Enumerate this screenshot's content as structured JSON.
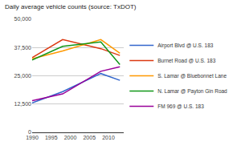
{
  "chart_data": {
    "type": "line",
    "title": "Daily average vehicle counts (source: TxDOT)",
    "x": [
      1990,
      1998,
      2008,
      2013
    ],
    "series": [
      {
        "name": "Airport Blvd @ U.S. 183",
        "color": "#3366cc",
        "values": [
          13000,
          18000,
          26000,
          23000
        ]
      },
      {
        "name": "Burnet Road @ U.S. 183",
        "color": "#dc3912",
        "values": [
          33000,
          41000,
          37000,
          34000
        ]
      },
      {
        "name": "S. Lamar @ Bluebonnet Lane",
        "color": "#ff9900",
        "values": [
          32500,
          36000,
          41000,
          35000
        ]
      },
      {
        "name": "N. Lamar @ Payton Gin Road",
        "color": "#109618",
        "values": [
          32000,
          38000,
          40000,
          30000
        ]
      },
      {
        "name": "FM 969 @ U.S. 183",
        "color": "#990099",
        "values": [
          14000,
          17000,
          27000,
          29000
        ]
      }
    ],
    "xlim": [
      1990,
      2014
    ],
    "xticks": [
      1990,
      1995,
      2000,
      2005,
      2010
    ],
    "ylim": [
      0,
      50000
    ],
    "yticks": [
      0,
      {
        "value": 12500,
        "label": "12,500"
      },
      {
        "value": 25000,
        "label": "25,000"
      },
      {
        "value": 37500,
        "label": "37,500"
      },
      {
        "value": 50000,
        "label": "50,000"
      }
    ],
    "grid": true,
    "legend": "right"
  }
}
